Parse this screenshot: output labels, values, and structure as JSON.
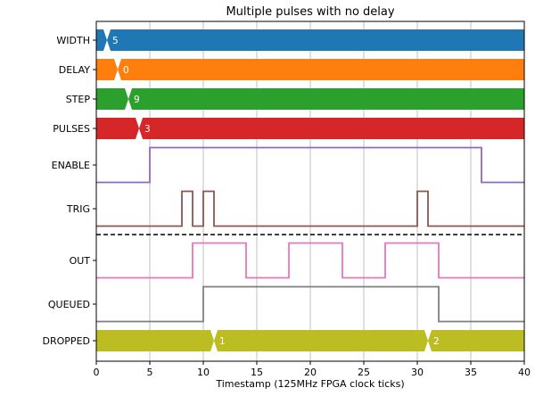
{
  "chart_data": {
    "type": "timing_diagram",
    "title": "Multiple pulses with no delay",
    "xlabel": "Timestamp (125MHz FPGA clock ticks)",
    "xlim": [
      0,
      40
    ],
    "xticks": [
      0,
      5,
      10,
      15,
      20,
      25,
      30,
      35,
      40
    ],
    "grid": "vertical",
    "separator_after": "TRIG",
    "signals": [
      {
        "name": "WIDTH",
        "kind": "bus",
        "color": "#1f77b4",
        "transitions": [
          {
            "t": 1,
            "value": "5"
          }
        ]
      },
      {
        "name": "DELAY",
        "kind": "bus",
        "color": "#ff7f0e",
        "transitions": [
          {
            "t": 2,
            "value": "0"
          }
        ]
      },
      {
        "name": "STEP",
        "kind": "bus",
        "color": "#2ca02c",
        "transitions": [
          {
            "t": 3,
            "value": "9"
          }
        ]
      },
      {
        "name": "PULSES",
        "kind": "bus",
        "color": "#d62728",
        "transitions": [
          {
            "t": 4,
            "value": "3"
          }
        ]
      },
      {
        "name": "ENABLE",
        "kind": "bit",
        "color": "#9467bd",
        "steps": [
          [
            0,
            0
          ],
          [
            5,
            1
          ],
          [
            36,
            0
          ]
        ]
      },
      {
        "name": "TRIG",
        "kind": "bit",
        "color": "#8c564b",
        "steps": [
          [
            0,
            0
          ],
          [
            8,
            1
          ],
          [
            9,
            0
          ],
          [
            10,
            1
          ],
          [
            11,
            0
          ],
          [
            30,
            1
          ],
          [
            31,
            0
          ]
        ]
      },
      {
        "name": "OUT",
        "kind": "bit",
        "color": "#e377c2",
        "steps": [
          [
            0,
            0
          ],
          [
            9,
            1
          ],
          [
            14,
            0
          ],
          [
            18,
            1
          ],
          [
            23,
            0
          ],
          [
            27,
            1
          ],
          [
            32,
            0
          ]
        ]
      },
      {
        "name": "QUEUED",
        "kind": "bit",
        "color": "#7f7f7f",
        "steps": [
          [
            0,
            0
          ],
          [
            10,
            1
          ],
          [
            32,
            0
          ]
        ]
      },
      {
        "name": "DROPPED",
        "kind": "bus",
        "color": "#bcbd22",
        "transitions": [
          {
            "t": 11,
            "value": "1"
          },
          {
            "t": 31,
            "value": "2"
          }
        ]
      }
    ]
  }
}
